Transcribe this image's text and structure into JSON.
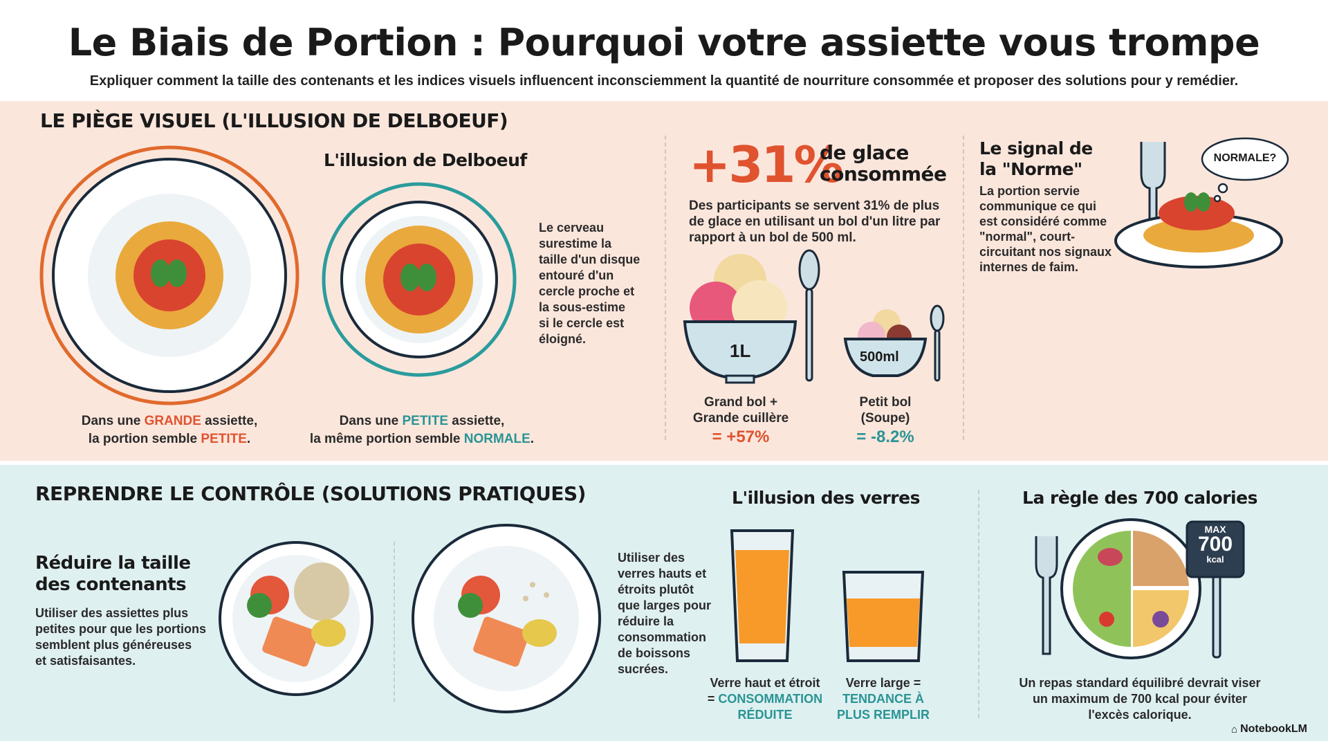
{
  "header": {
    "title": "Le Biais de Portion : Pourquoi votre assiette vous trompe",
    "subtitle": "Expliquer comment la taille des contenants et les indices visuels influencent inconsciemment la quantité de nourriture consommée et proposer des solutions pour y remédier."
  },
  "colors": {
    "accent_red": "#e0532f",
    "accent_teal": "#2a9494",
    "top_bg": "#fbe6dc",
    "bottom_bg": "#dff0f1"
  },
  "trap": {
    "heading": "LE PIÈGE VISUEL (L'ILLUSION DE DELBOEUF)",
    "illusion_title": "L'illusion de Delboeuf",
    "illusion_text": [
      "Le cerveau",
      "surestime la",
      "taille d'un disque",
      "entouré d'un",
      "cercle proche et",
      "la sous-estime",
      "si le cercle est",
      "éloigné."
    ],
    "big_plate": {
      "l1a": "Dans une ",
      "l1b": "GRANDE",
      "l1c": " assiette,",
      "l2a": "la portion semble ",
      "l2b": "PETITE",
      "l2c": "."
    },
    "small_plate": {
      "l1a": "Dans une ",
      "l1b": "PETITE",
      "l1c": " assiette,",
      "l2a": "la même portion semble ",
      "l2b": "NORMALE",
      "l2c": "."
    },
    "ice": {
      "stat": "+31%",
      "stat_l1": "de glace",
      "stat_l2": "consommée",
      "desc": [
        "Des participants se servent 31% de plus",
        "de glace en utilisant un bol d'un litre par",
        "rapport à un bol de 500 ml."
      ],
      "big_bowl_label": "1L",
      "small_bowl_label": "500ml",
      "big_cap_l1": "Grand bol +",
      "big_cap_l2": "Grande cuillère",
      "big_value": "= +57%",
      "small_cap_l1": "Petit bol",
      "small_cap_l2": "(Soupe)",
      "small_value": "= -8.2%"
    },
    "norm": {
      "title_l1": "Le signal de",
      "title_l2": "la \"Norme\"",
      "desc": [
        "La portion servie",
        "communique ce qui",
        "est considéré comme",
        "\"normal\", court-",
        "circuitant nos signaux",
        "internes de faim."
      ],
      "bubble": "NORMALE?"
    }
  },
  "solutions": {
    "heading": "REPRENDRE LE CONTRÔLE (SOLUTIONS PRATIQUES)",
    "reduce": {
      "title_l1": "Réduire la taille",
      "title_l2": "des contenants",
      "desc": [
        "Utiliser des assiettes plus",
        "petites pour que les portions",
        "semblent plus généreuses",
        "et satisfaisantes."
      ]
    },
    "glasses": {
      "title": "L'illusion des verres",
      "desc": [
        "Utiliser des",
        "verres hauts et",
        "étroits plutôt",
        "que larges pour",
        "réduire la",
        "consommation",
        "de boissons",
        "sucrées."
      ],
      "tall_l1": "Verre haut et étroit",
      "tall_l2a": "= ",
      "tall_l2b": "CONSOMMATION",
      "tall_l3": "RÉDUITE",
      "wide_l1": "Verre large =",
      "wide_l2": "TENDANCE À",
      "wide_l3": "PLUS REMPLIR"
    },
    "calories": {
      "title": "La règle des 700 calories",
      "sign_l1": "MAX",
      "sign_l2": "700",
      "sign_l3": "kcal",
      "desc": [
        "Un repas standard équilibré devrait viser",
        "un maximum de 700 kcal pour éviter",
        "l'excès calorique."
      ]
    }
  },
  "footer": {
    "brand": "NotebookLM"
  }
}
